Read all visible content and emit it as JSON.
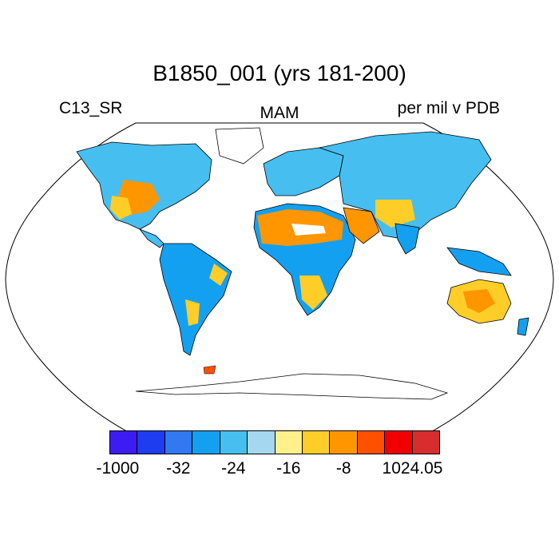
{
  "title": "B1850_001 (yrs 181-200)",
  "left_label": "C13_SR",
  "center_label": "MAM",
  "right_label": "per mil v PDB",
  "colorbar": {
    "colors": [
      "#3c1cf0",
      "#1e3cf0",
      "#3278f0",
      "#14a0f0",
      "#46bef0",
      "#a5d7f0",
      "#fff08c",
      "#ffcd28",
      "#ff9600",
      "#ff5000",
      "#f00000",
      "#d72d2d"
    ],
    "tick_labels": [
      "-1000",
      "-32",
      "-24",
      "-16",
      "-8",
      "1024.05"
    ]
  },
  "map": {
    "projection": "Robinson",
    "variable": "C13_SR",
    "units": "per mil v PDB",
    "ocean_color": "#ffffff",
    "coastline_color": "#000000"
  }
}
